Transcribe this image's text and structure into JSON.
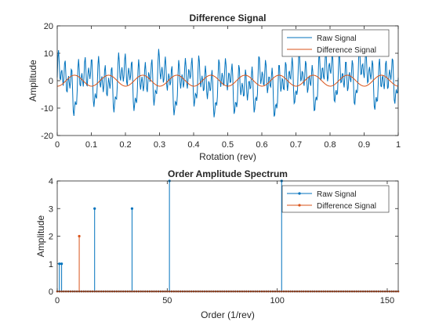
{
  "colors": {
    "raw": "#0072BD",
    "diff": "#D95319",
    "axis": "#262626",
    "background": "#ffffff"
  },
  "chart_data": [
    {
      "type": "line",
      "title": "Difference Signal",
      "xlabel": "Rotation (rev)",
      "ylabel": "Amplitude",
      "xlim": [
        0,
        1
      ],
      "ylim": [
        -20,
        20
      ],
      "xticks": [
        0,
        0.1,
        0.2,
        0.3,
        0.4,
        0.5,
        0.6,
        0.7,
        0.8,
        0.9,
        1
      ],
      "xtick_labels": [
        "0",
        "0.1",
        "0.2",
        "0.3",
        "0.4",
        "0.5",
        "0.6",
        "0.7",
        "0.8",
        "0.9",
        "1"
      ],
      "yticks": [
        -20,
        -10,
        0,
        10,
        20
      ],
      "ytick_labels": [
        "-20",
        "-10",
        "0",
        "10",
        "20"
      ],
      "legend_position": "top-right",
      "series": [
        {
          "name": "Raw Signal",
          "color": "#0072BD",
          "samples": 512,
          "components": [
            {
              "order": 1,
              "amplitude": 1
            },
            {
              "order": 2,
              "amplitude": 1
            },
            {
              "order": 10,
              "amplitude": 2
            },
            {
              "order": 17,
              "amplitude": 3
            },
            {
              "order": 34,
              "amplitude": 3
            },
            {
              "order": 51,
              "amplitude": 4
            },
            {
              "order": 102,
              "amplitude": 4
            }
          ]
        },
        {
          "name": "Difference Signal",
          "color": "#D95319",
          "samples": 512,
          "components": [
            {
              "order": 10,
              "amplitude": 2
            }
          ]
        }
      ]
    },
    {
      "type": "stem",
      "title": "Order Amplitude Spectrum",
      "xlabel": "Order (1/rev)",
      "ylabel": "Amplitude",
      "xlim": [
        0,
        155
      ],
      "ylim": [
        0,
        4
      ],
      "xticks": [
        0,
        50,
        100,
        150
      ],
      "xtick_labels": [
        "0",
        "50",
        "100",
        "150"
      ],
      "yticks": [
        0,
        1,
        2,
        3,
        4
      ],
      "ytick_labels": [
        "0",
        "1",
        "2",
        "3",
        "4"
      ],
      "legend_position": "top-right",
      "order_max": 155,
      "series": [
        {
          "name": "Raw Signal",
          "color": "#0072BD",
          "stems": [
            {
              "order": 1,
              "amplitude": 1
            },
            {
              "order": 2,
              "amplitude": 1
            },
            {
              "order": 17,
              "amplitude": 3
            },
            {
              "order": 34,
              "amplitude": 3
            },
            {
              "order": 51,
              "amplitude": 4
            },
            {
              "order": 102,
              "amplitude": 4
            }
          ]
        },
        {
          "name": "Difference Signal",
          "color": "#D95319",
          "stems": [
            {
              "order": 10,
              "amplitude": 2
            }
          ]
        }
      ]
    }
  ]
}
